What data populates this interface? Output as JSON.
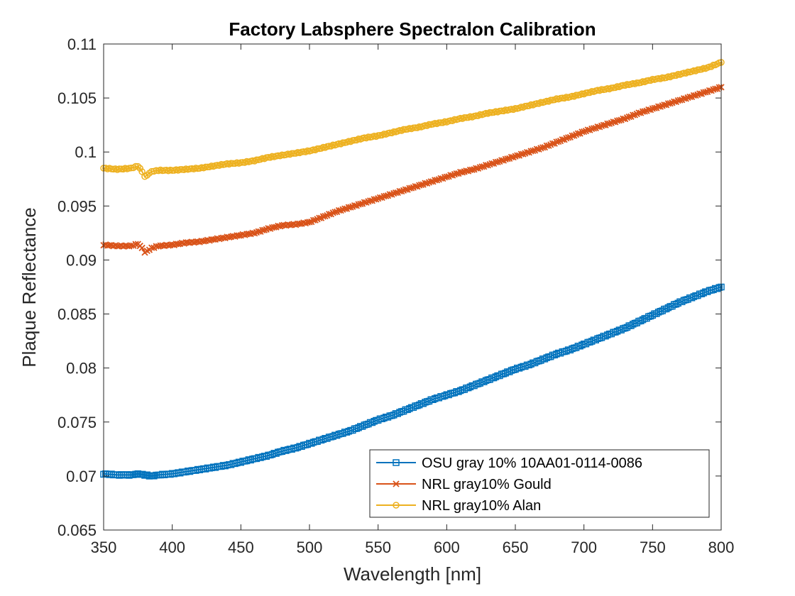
{
  "chart_data": {
    "type": "line",
    "title": "Factory Labsphere Spectralon Calibration",
    "xlabel": "Wavelength [nm]",
    "ylabel": "Plaque Reflectance",
    "xlim": [
      350,
      800
    ],
    "ylim": [
      0.065,
      0.11
    ],
    "xticks": [
      350,
      400,
      450,
      500,
      550,
      600,
      650,
      700,
      750,
      800
    ],
    "xtick_labels": [
      "350",
      "400",
      "450",
      "500",
      "550",
      "600",
      "650",
      "700",
      "750",
      "800"
    ],
    "yticks": [
      0.065,
      0.07,
      0.075,
      0.08,
      0.085,
      0.09,
      0.095,
      0.1,
      0.105,
      0.11
    ],
    "ytick_labels": [
      "0.065",
      "0.07",
      "0.075",
      "0.08",
      "0.085",
      "0.09",
      "0.095",
      "0.1",
      "0.105",
      "0.11"
    ],
    "grid": false,
    "legend_position": "bottom-right",
    "series": [
      {
        "name": "OSU gray 10% 10AA01-0114-0086",
        "color": "#0072BD",
        "marker": "square",
        "x": [
          350,
          360,
          370,
          375,
          380,
          385,
          390,
          400,
          410,
          420,
          430,
          440,
          450,
          460,
          470,
          480,
          490,
          500,
          510,
          520,
          530,
          540,
          550,
          560,
          570,
          580,
          590,
          600,
          610,
          620,
          630,
          640,
          650,
          660,
          670,
          680,
          690,
          700,
          710,
          720,
          730,
          740,
          750,
          760,
          770,
          780,
          790,
          800
        ],
        "y": [
          0.0702,
          0.0701,
          0.0701,
          0.0702,
          0.0701,
          0.07,
          0.0701,
          0.0702,
          0.0704,
          0.0706,
          0.0708,
          0.071,
          0.0713,
          0.0716,
          0.0719,
          0.0723,
          0.0726,
          0.073,
          0.0734,
          0.0738,
          0.0742,
          0.0747,
          0.0752,
          0.0756,
          0.0761,
          0.0766,
          0.0771,
          0.0775,
          0.0779,
          0.0784,
          0.0789,
          0.0794,
          0.0799,
          0.0803,
          0.0808,
          0.0813,
          0.0817,
          0.0822,
          0.0827,
          0.0832,
          0.0837,
          0.0843,
          0.0849,
          0.0855,
          0.0861,
          0.0866,
          0.0871,
          0.0875
        ]
      },
      {
        "name": "NRL gray10% Gould",
        "color": "#D95319",
        "marker": "x",
        "x": [
          350,
          360,
          370,
          375,
          378,
          380,
          385,
          390,
          400,
          410,
          420,
          430,
          440,
          450,
          460,
          470,
          480,
          490,
          500,
          510,
          520,
          530,
          540,
          550,
          560,
          570,
          580,
          590,
          600,
          610,
          620,
          630,
          640,
          650,
          660,
          670,
          680,
          690,
          700,
          710,
          720,
          730,
          740,
          750,
          760,
          770,
          780,
          790,
          800
        ],
        "y": [
          0.0914,
          0.0913,
          0.0913,
          0.0915,
          0.0911,
          0.0907,
          0.0911,
          0.0913,
          0.0914,
          0.0916,
          0.0917,
          0.0919,
          0.0921,
          0.0923,
          0.0925,
          0.0929,
          0.0932,
          0.0933,
          0.0935,
          0.094,
          0.0945,
          0.0949,
          0.0953,
          0.0957,
          0.0961,
          0.0965,
          0.0969,
          0.0973,
          0.0977,
          0.0981,
          0.0984,
          0.0988,
          0.0992,
          0.0996,
          0.1,
          0.1004,
          0.1009,
          0.1014,
          0.1019,
          0.1023,
          0.1027,
          0.1031,
          0.1036,
          0.104,
          0.1044,
          0.1048,
          0.1052,
          0.1056,
          0.106
        ]
      },
      {
        "name": "NRL gray10% Alan",
        "color": "#EDB120",
        "marker": "circle",
        "x": [
          350,
          360,
          370,
          375,
          378,
          380,
          385,
          390,
          400,
          410,
          420,
          430,
          440,
          450,
          460,
          470,
          480,
          490,
          500,
          510,
          520,
          530,
          540,
          550,
          560,
          570,
          580,
          590,
          600,
          610,
          620,
          630,
          640,
          650,
          660,
          670,
          680,
          690,
          700,
          710,
          720,
          730,
          740,
          750,
          760,
          770,
          780,
          790,
          800
        ],
        "y": [
          0.0985,
          0.0984,
          0.0985,
          0.0987,
          0.0982,
          0.0977,
          0.0982,
          0.0983,
          0.0983,
          0.0984,
          0.0985,
          0.0987,
          0.0989,
          0.099,
          0.0992,
          0.0995,
          0.0997,
          0.0999,
          0.1001,
          0.1004,
          0.1007,
          0.101,
          0.1013,
          0.1015,
          0.1018,
          0.1021,
          0.1023,
          0.1026,
          0.1028,
          0.1031,
          0.1033,
          0.1036,
          0.1038,
          0.104,
          0.1043,
          0.1046,
          0.1049,
          0.1051,
          0.1054,
          0.1057,
          0.1059,
          0.1062,
          0.1064,
          0.1067,
          0.1069,
          0.1072,
          0.1075,
          0.1078,
          0.1083
        ]
      }
    ]
  }
}
